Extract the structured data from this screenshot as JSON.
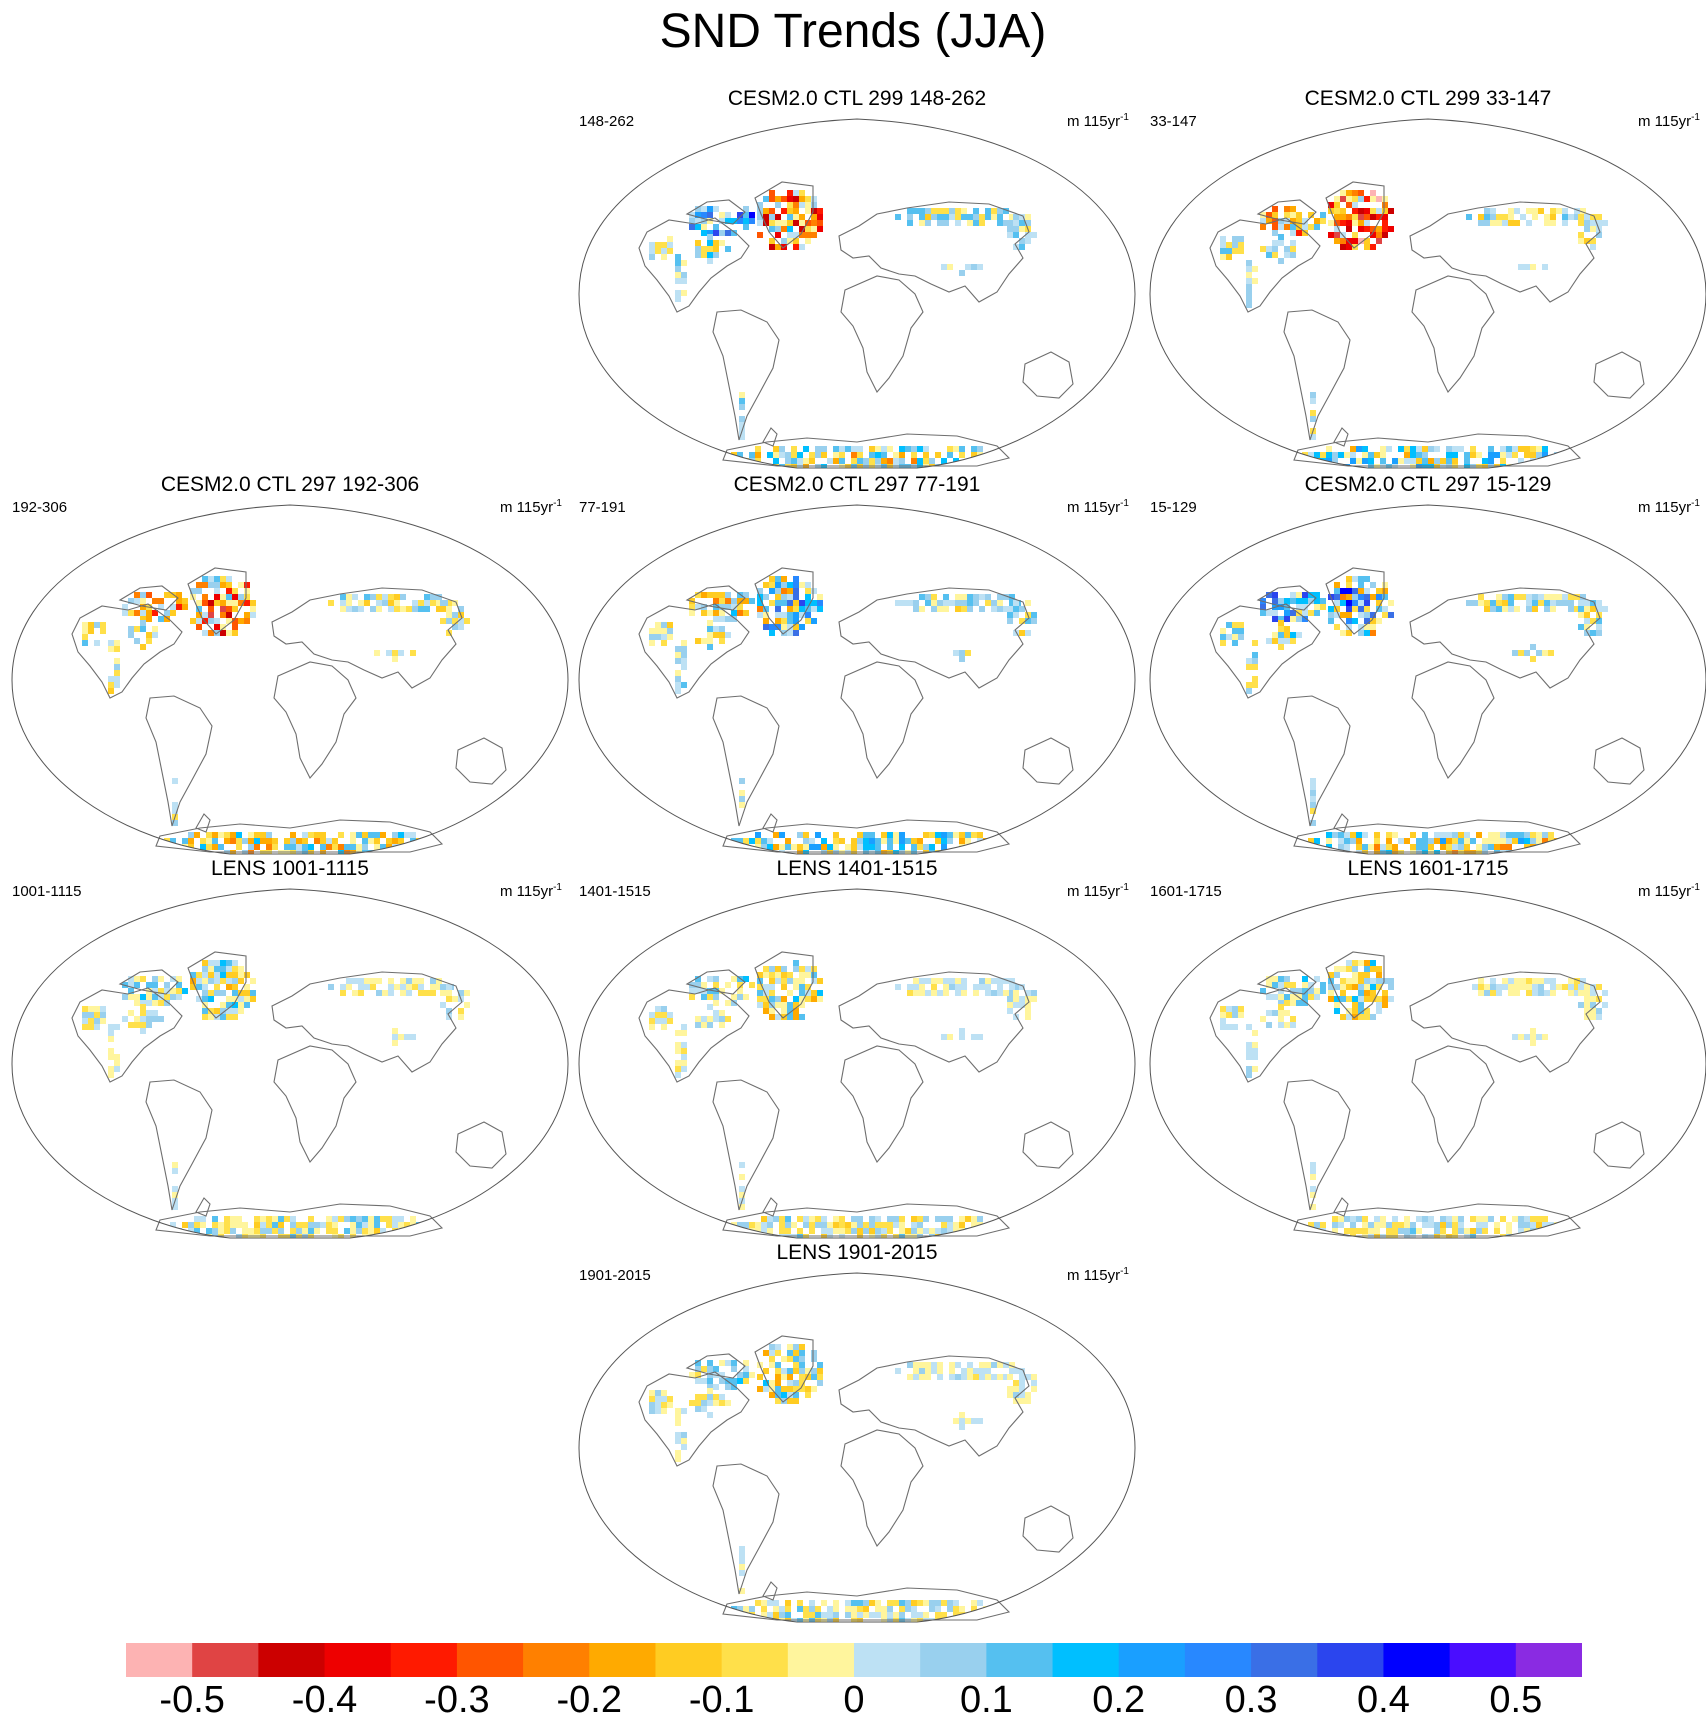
{
  "title": "SND Trends (JJA)",
  "unit_main": "m 115yr",
  "unit_sup": "-1",
  "panels": [
    {
      "title": "CESM2.0 CTL 299 148-262",
      "left_label": "148-262",
      "pattern": "ctl_a",
      "seed": 11
    },
    {
      "title": "CESM2.0 CTL 299 33-147",
      "left_label": "33-147",
      "pattern": "ctl_b",
      "seed": 23
    },
    {
      "title": "CESM2.0 CTL 297 192-306",
      "left_label": "192-306",
      "pattern": "ctl_c",
      "seed": 37
    },
    {
      "title": "CESM2.0 CTL 297 77-191",
      "left_label": "77-191",
      "pattern": "ctl_d",
      "seed": 41
    },
    {
      "title": "CESM2.0 CTL 297 15-129",
      "left_label": "15-129",
      "pattern": "ctl_e",
      "seed": 53
    },
    {
      "title": "LENS 1001-1115",
      "left_label": "1001-1115",
      "pattern": "lens",
      "seed": 61
    },
    {
      "title": "LENS 1401-1515",
      "left_label": "1401-1515",
      "pattern": "lens",
      "seed": 71
    },
    {
      "title": "LENS 1601-1715",
      "left_label": "1601-1715",
      "pattern": "lens",
      "seed": 83
    },
    {
      "title": "LENS 1901-2015",
      "left_label": "1901-2015",
      "pattern": "lens",
      "seed": 97
    }
  ],
  "colorbar": {
    "colors": [
      "#fdb3b3",
      "#e04444",
      "#cc0000",
      "#ee0000",
      "#ff1a00",
      "#ff5500",
      "#ff8000",
      "#ffaa00",
      "#ffcc22",
      "#ffe04a",
      "#fff59d",
      "#bde1f4",
      "#99d0ee",
      "#55c0f0",
      "#00bfff",
      "#1a9fff",
      "#2888ff",
      "#3a6fe6",
      "#2b45ee",
      "#0000ff",
      "#4a0dff",
      "#8a2be2"
    ],
    "labels": [
      "-0.5",
      "-0.4",
      "-0.3",
      "-0.2",
      "-0.1",
      "0",
      "0.1",
      "0.2",
      "0.3",
      "0.4",
      "0.5"
    ]
  }
}
